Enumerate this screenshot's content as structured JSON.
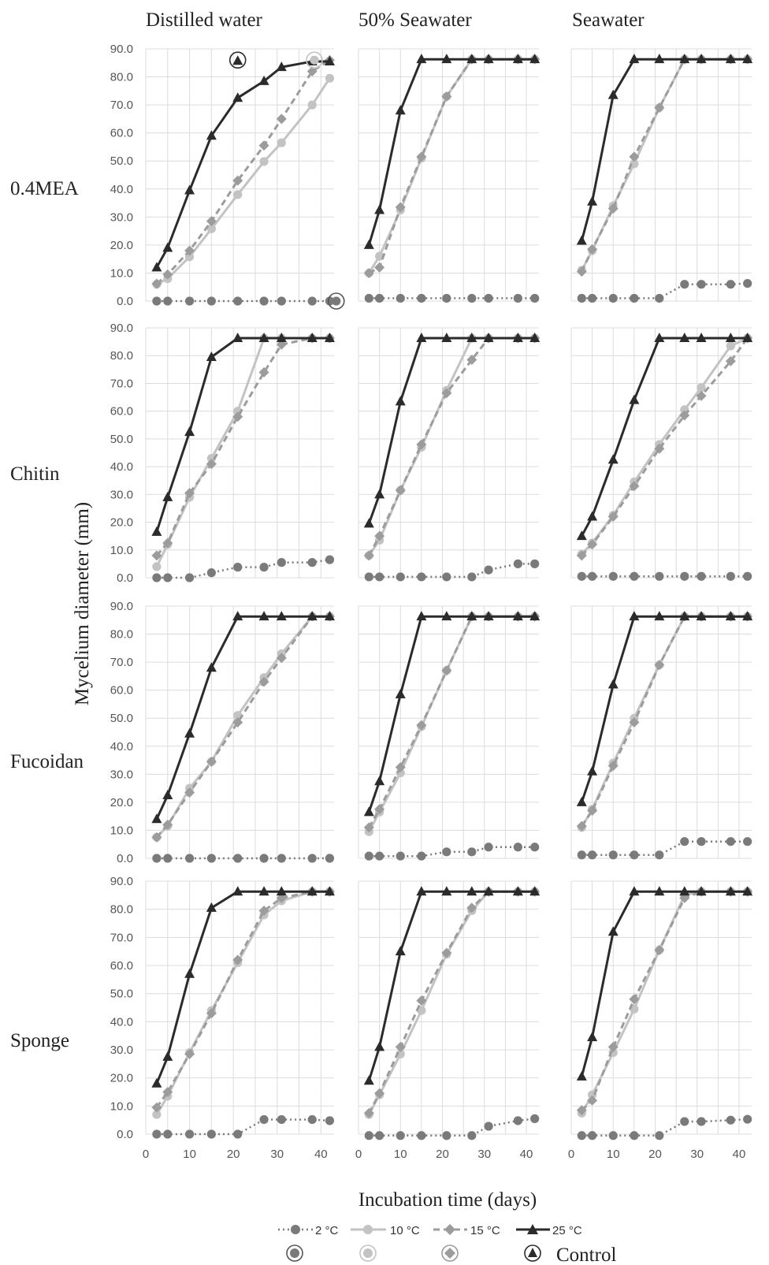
{
  "figure": {
    "columns": [
      "Distilled water",
      "50% Seawater",
      "Seawater"
    ],
    "rows": [
      "0.4MEA",
      "Chitin",
      "Fucoidan",
      "Sponge"
    ],
    "ylabel": "Mycelium diameter (mm)",
    "xlabel": "Incubation time (days)",
    "legend": {
      "series": [
        "2 °C",
        "10 °C",
        "15 °C",
        "25 °C"
      ],
      "control_label": "Control"
    }
  },
  "chart_data": {
    "type": "line",
    "x_days": [
      2.5,
      5,
      10,
      15,
      21,
      27,
      31,
      38,
      42
    ],
    "ylim": [
      0,
      90
    ],
    "xlim": [
      0,
      43
    ],
    "y_ticks": [
      "0.0",
      "10.0",
      "20.0",
      "30.0",
      "40.0",
      "50.0",
      "60.0",
      "70.0",
      "80.0",
      "90.0"
    ],
    "x_ticks": [
      "0",
      "10",
      "20",
      "30",
      "40"
    ],
    "grid": true,
    "legend_placement": "bottom",
    "series_styles": [
      {
        "name": "2 °C",
        "color": "#7a7a7a",
        "dash": "dotted",
        "marker": "circle"
      },
      {
        "name": "10 °C",
        "color": "#c3c3c3",
        "dash": "solid",
        "marker": "circle"
      },
      {
        "name": "15 °C",
        "color": "#9c9c9c",
        "dash": "dashed",
        "marker": "diamond"
      },
      {
        "name": "25 °C",
        "color": "#2b2b2b",
        "dash": "solid",
        "marker": "triangle"
      }
    ],
    "panels": [
      {
        "row": "0.4MEA",
        "column": "Distilled water",
        "series": [
          {
            "name": "2 °C",
            "values": [
              0,
              0,
              0,
              0,
              0,
              0,
              0,
              0,
              0
            ]
          },
          {
            "name": "10 °C",
            "values": [
              6,
              8,
              15.8,
              25.8,
              38,
              49.8,
              56.5,
              70,
              79.5
            ]
          },
          {
            "name": "15 °C",
            "values": [
              6.2,
              9.5,
              18,
              28.5,
              43,
              55.5,
              65,
              82,
              86
            ]
          },
          {
            "name": "25 °C",
            "values": [
              12,
              19,
              39.5,
              59,
              72.5,
              78.5,
              83.5,
              85.5,
              85.5
            ]
          }
        ],
        "control": [
          {
            "series": "25 °C",
            "x": 21,
            "y": 86
          },
          {
            "series": "10 °C",
            "x": 38.5,
            "y": 86
          },
          {
            "series": "2 °C",
            "x": 43.5,
            "y": 0
          }
        ]
      },
      {
        "row": "0.4MEA",
        "column": "50% Seawater",
        "series": [
          {
            "name": "2 °C",
            "values": [
              1,
              1,
              1,
              1,
              1,
              1,
              1,
              1,
              1
            ]
          },
          {
            "name": "10 °C",
            "values": [
              10,
              16,
              32.5,
              51,
              73,
              86.3,
              86.3,
              86.3,
              86.3
            ]
          },
          {
            "name": "15 °C",
            "values": [
              10,
              12,
              33.5,
              51.5,
              73,
              86.3,
              86.3,
              86.3,
              86.3
            ]
          },
          {
            "name": "25 °C",
            "values": [
              20,
              32.5,
              68,
              86.3,
              86.3,
              86.3,
              86.3,
              86.3,
              86.3
            ]
          }
        ]
      },
      {
        "row": "0.4MEA",
        "column": "Seawater",
        "series": [
          {
            "name": "2 °C",
            "values": [
              1,
              1,
              1,
              1,
              1,
              6,
              6,
              6,
              6.3
            ]
          },
          {
            "name": "10 °C",
            "values": [
              11,
              18,
              34,
              49,
              69,
              86.3,
              86.3,
              86.3,
              86.3
            ]
          },
          {
            "name": "15 °C",
            "values": [
              10.5,
              18.5,
              33,
              51.5,
              69,
              86.3,
              86.3,
              86.3,
              86.3
            ]
          },
          {
            "name": "25 °C",
            "values": [
              21.5,
              35.5,
              73.5,
              86.3,
              86.3,
              86.3,
              86.3,
              86.3,
              86.3
            ]
          }
        ]
      },
      {
        "row": "Chitin",
        "column": "Distilled water",
        "series": [
          {
            "name": "2 °C",
            "values": [
              0,
              0,
              0,
              1.8,
              3.8,
              3.8,
              5.5,
              5.5,
              6.5
            ]
          },
          {
            "name": "10 °C",
            "values": [
              4,
              12,
              29,
              43,
              60,
              86.3,
              86.3,
              86.3,
              86.3
            ]
          },
          {
            "name": "15 °C",
            "values": [
              8,
              12.5,
              30.5,
              41,
              58,
              74,
              84,
              86.3,
              86.3
            ]
          },
          {
            "name": "25 °C",
            "values": [
              16.5,
              29,
              52.5,
              79.5,
              86.3,
              86.3,
              86.3,
              86.3,
              86.3
            ]
          }
        ]
      },
      {
        "row": "Chitin",
        "column": "50% Seawater",
        "series": [
          {
            "name": "2 °C",
            "values": [
              0.3,
              0.3,
              0.3,
              0.3,
              0.3,
              0.3,
              2.8,
              5,
              5
            ]
          },
          {
            "name": "10 °C",
            "values": [
              8,
              13.5,
              31.5,
              47,
              67.5,
              86.3,
              86.3,
              86.3,
              86.3
            ]
          },
          {
            "name": "15 °C",
            "values": [
              8,
              15,
              31.5,
              48,
              66.5,
              78.5,
              86.3,
              86.3,
              86.3
            ]
          },
          {
            "name": "25 °C",
            "values": [
              19.5,
              30,
              63.5,
              86.3,
              86.3,
              86.3,
              86.3,
              86.3,
              86.3
            ]
          }
        ]
      },
      {
        "row": "Chitin",
        "column": "Seawater",
        "series": [
          {
            "name": "2 °C",
            "values": [
              0.5,
              0.5,
              0.5,
              0.5,
              0.5,
              0.5,
              0.5,
              0.5,
              0.5
            ]
          },
          {
            "name": "10 °C",
            "values": [
              8.5,
              12.5,
              22.5,
              34.5,
              48,
              60.5,
              68.5,
              83.5,
              86.3
            ]
          },
          {
            "name": "15 °C",
            "values": [
              8,
              12,
              22,
              33,
              46.5,
              58.5,
              65.5,
              78,
              86.3
            ]
          },
          {
            "name": "25 °C",
            "values": [
              15,
              22,
              42.5,
              64,
              86.3,
              86.3,
              86.3,
              86.3,
              86.3
            ]
          }
        ]
      },
      {
        "row": "Fucoidan",
        "column": "Distilled water",
        "series": [
          {
            "name": "2 °C",
            "values": [
              0,
              0,
              0,
              0,
              0,
              0,
              0,
              0,
              0
            ]
          },
          {
            "name": "10 °C",
            "values": [
              7.5,
              11.5,
              25,
              34.5,
              51,
              64.5,
              73,
              86.3,
              86.3
            ]
          },
          {
            "name": "15 °C",
            "values": [
              7.5,
              12,
              23.5,
              34.5,
              48.5,
              63,
              71.5,
              86.3,
              86.3
            ]
          },
          {
            "name": "25 °C",
            "values": [
              14,
              22.5,
              44.5,
              68,
              86.3,
              86.3,
              86.3,
              86.3,
              86.3
            ]
          }
        ]
      },
      {
        "row": "Fucoidan",
        "column": "50% Seawater",
        "series": [
          {
            "name": "2 °C",
            "values": [
              0.8,
              0.8,
              0.8,
              0.8,
              2.3,
              2.3,
              4,
              4,
              4
            ]
          },
          {
            "name": "10 °C",
            "values": [
              9.5,
              16.5,
              30.5,
              47,
              67,
              86.3,
              86.3,
              86.3,
              86.3
            ]
          },
          {
            "name": "15 °C",
            "values": [
              11,
              17.5,
              32.5,
              47.5,
              67,
              86.3,
              86.3,
              86.3,
              86.3
            ]
          },
          {
            "name": "25 °C",
            "values": [
              16.5,
              27.5,
              58.5,
              86.3,
              86.3,
              86.3,
              86.3,
              86.3,
              86.3
            ]
          }
        ]
      },
      {
        "row": "Fucoidan",
        "column": "Seawater",
        "series": [
          {
            "name": "2 °C",
            "values": [
              1.2,
              1.2,
              1.2,
              1.2,
              1.2,
              6,
              6,
              6,
              6
            ]
          },
          {
            "name": "10 °C",
            "values": [
              11,
              17.5,
              34,
              50,
              69,
              86.3,
              86.3,
              86.3,
              86.3
            ]
          },
          {
            "name": "15 °C",
            "values": [
              11.5,
              17,
              33,
              48.5,
              69,
              86.3,
              86.3,
              86.3,
              86.3
            ]
          },
          {
            "name": "25 °C",
            "values": [
              20,
              31,
              62,
              86.3,
              86.3,
              86.3,
              86.3,
              86.3,
              86.3
            ]
          }
        ]
      },
      {
        "row": "Sponge",
        "column": "Distilled water",
        "series": [
          {
            "name": "2 °C",
            "values": [
              0,
              0,
              0,
              0,
              0,
              5.2,
              5.2,
              5.2,
              4.8
            ]
          },
          {
            "name": "10 °C",
            "values": [
              7,
              13.5,
              29,
              44,
              61,
              78,
              83,
              86.3,
              86.3
            ]
          },
          {
            "name": "15 °C",
            "values": [
              9.5,
              15,
              28.5,
              43,
              62,
              79.5,
              84,
              86.3,
              86.3
            ]
          },
          {
            "name": "25 °C",
            "values": [
              18,
              27.5,
              57,
              80.5,
              86.3,
              86.3,
              86.3,
              86.3,
              86.3
            ]
          }
        ]
      },
      {
        "row": "Sponge",
        "column": "50% Seawater",
        "series": [
          {
            "name": "2 °C",
            "values": [
              -0.5,
              -0.5,
              -0.5,
              -0.5,
              -0.5,
              -0.5,
              2.8,
              4.8,
              5.5
            ]
          },
          {
            "name": "10 °C",
            "values": [
              7,
              14,
              28.5,
              44,
              64,
              79.5,
              86.3,
              86.3,
              86.3
            ]
          },
          {
            "name": "15 °C",
            "values": [
              7.5,
              14.5,
              31,
              47.5,
              64.5,
              80.5,
              86.3,
              86.3,
              86.3
            ]
          },
          {
            "name": "25 °C",
            "values": [
              19,
              31,
              65,
              86.3,
              86.3,
              86.3,
              86.3,
              86.3,
              86.3
            ]
          }
        ]
      },
      {
        "row": "Sponge",
        "column": "Seawater",
        "series": [
          {
            "name": "2 °C",
            "values": [
              -0.5,
              -0.5,
              -0.5,
              -0.5,
              -0.5,
              4.5,
              4.5,
              5,
              5.3
            ]
          },
          {
            "name": "10 °C",
            "values": [
              7.5,
              14,
              29,
              44.5,
              65.5,
              85,
              86.3,
              86.3,
              86.3
            ]
          },
          {
            "name": "15 °C",
            "values": [
              8.5,
              12,
              31,
              48,
              65.5,
              84,
              86.3,
              86.3,
              86.3
            ]
          },
          {
            "name": "25 °C",
            "values": [
              20.5,
              34.5,
              72,
              86.3,
              86.3,
              86.3,
              86.3,
              86.3,
              86.3
            ]
          }
        ]
      }
    ]
  }
}
